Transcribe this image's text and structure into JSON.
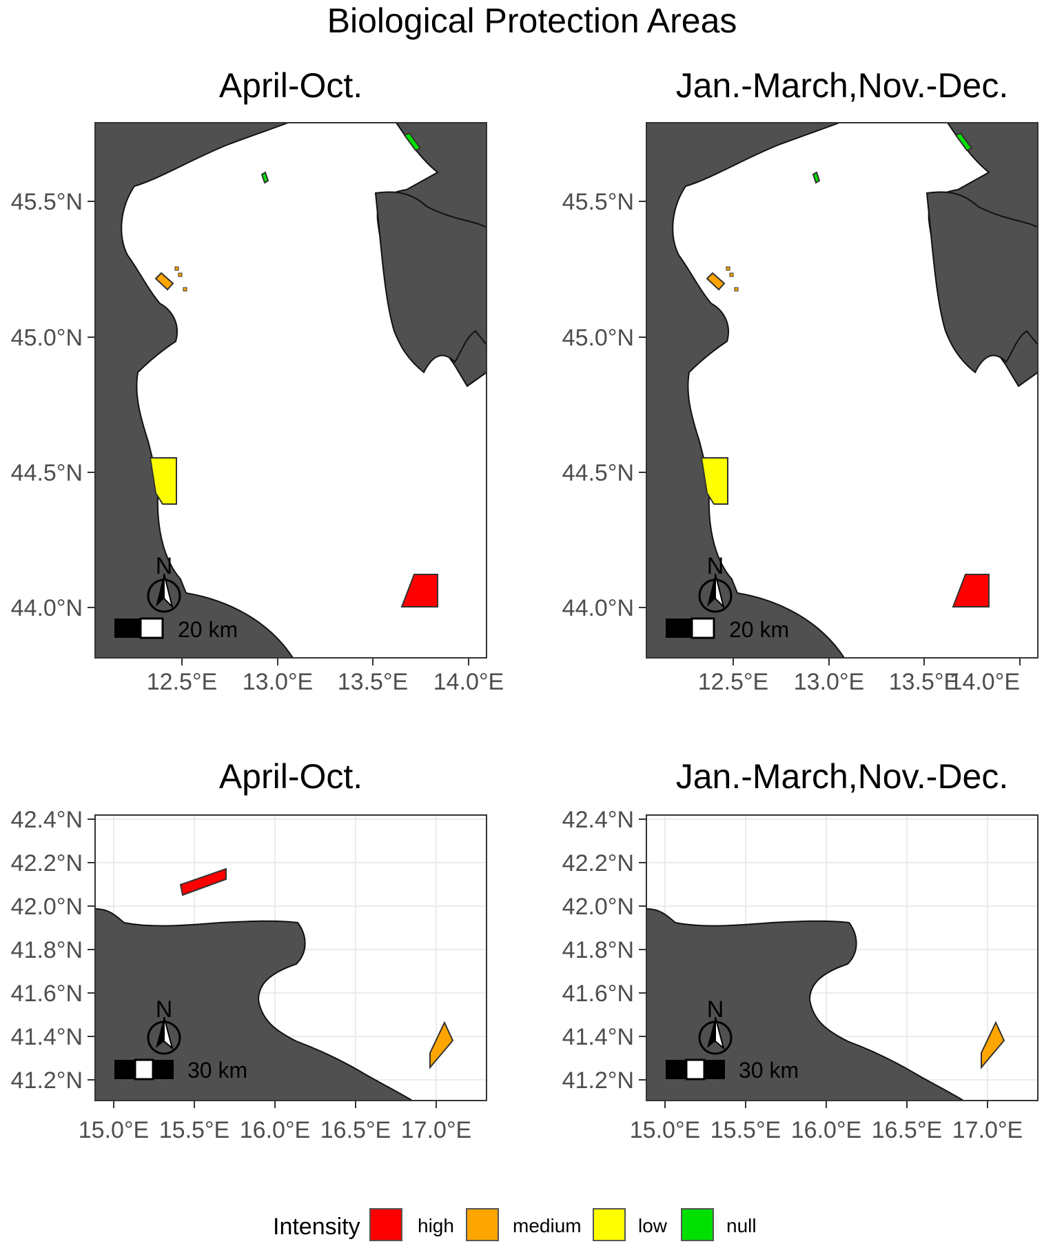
{
  "title": "Biological Protection Areas",
  "panels": [
    {
      "title": "April-Oct.",
      "region": "north",
      "x_ticks": [
        "12.5°E",
        "13.0°E",
        "13.5°E",
        "14.0°E"
      ],
      "y_ticks": [
        "45.5°N",
        "45.0°N",
        "44.5°N",
        "44.0°N"
      ],
      "scale_label": "20 km",
      "north_label": "N"
    },
    {
      "title": "Jan.-March,Nov.-Dec.",
      "region": "north",
      "x_ticks": [
        "12.5°E",
        "13.0°E",
        "13.5°E",
        "14.0°E"
      ],
      "y_ticks": [
        "45.5°N",
        "45.0°N",
        "44.5°N",
        "44.0°N"
      ],
      "scale_label": "20 km",
      "north_label": "N"
    },
    {
      "title": "April-Oct.",
      "region": "south",
      "x_ticks": [
        "15.0°E",
        "15.5°E",
        "16.0°E",
        "16.5°E",
        "17.0°E"
      ],
      "y_ticks": [
        "42.4°N",
        "42.2°N",
        "42.0°N",
        "41.8°N",
        "41.6°N",
        "41.4°N",
        "41.2°N"
      ],
      "scale_label": "30 km",
      "north_label": "N"
    },
    {
      "title": "Jan.-March,Nov.-Dec.",
      "region": "south",
      "x_ticks": [
        "15.0°E",
        "15.5°E",
        "16.0°E",
        "16.5°E",
        "17.0°E"
      ],
      "y_ticks": [
        "42.4°N",
        "42.2°N",
        "42.0°N",
        "41.8°N",
        "41.6°N",
        "41.4°N",
        "41.2°N"
      ],
      "scale_label": "30 km",
      "north_label": "N"
    }
  ],
  "legend": {
    "title": "Intensity",
    "items": [
      {
        "label": "high",
        "color": "#ff0000"
      },
      {
        "label": "medium",
        "color": "#ffa500"
      },
      {
        "label": "low",
        "color": "#ffff00"
      },
      {
        "label": "null",
        "color": "#00e000"
      }
    ]
  },
  "colors": {
    "land": "#505050",
    "sea": "#ffffff",
    "grid": "#ebebeb",
    "border": "#333333"
  }
}
